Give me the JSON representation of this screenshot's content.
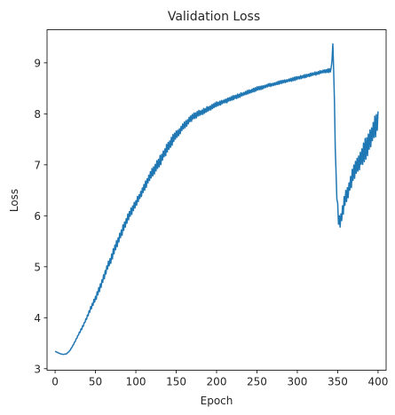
{
  "chart_data": {
    "type": "line",
    "title": "Validation Loss",
    "xlabel": "Epoch",
    "ylabel": "Loss",
    "xlim": [
      -10,
      410
    ],
    "ylim": [
      2.97,
      9.65
    ],
    "xticks": [
      0,
      50,
      100,
      150,
      200,
      250,
      300,
      350,
      400
    ],
    "yticks": [
      3,
      4,
      5,
      6,
      7,
      8,
      9
    ],
    "grid": false,
    "legend": false,
    "color": "#1f77b4",
    "series": [
      {
        "x": [
          0,
          4,
          7,
          10,
          14,
          18,
          22,
          26,
          30,
          34,
          38,
          42,
          46,
          50,
          55,
          60,
          65,
          70,
          75,
          80,
          85,
          90,
          95,
          100,
          105,
          110,
          115,
          120,
          125,
          130,
          135,
          140,
          145,
          150,
          155,
          160,
          165,
          170,
          175,
          180,
          185,
          190,
          195,
          200,
          205,
          210,
          215,
          220,
          225,
          230,
          235,
          240,
          245,
          250,
          255,
          260,
          265,
          270,
          275,
          280,
          285,
          290,
          295,
          300,
          305,
          310,
          315,
          320,
          325,
          330,
          335,
          340,
          342,
          343,
          344,
          345,
          346,
          347,
          348,
          350,
          352,
          354,
          356,
          358,
          360,
          362,
          364,
          366,
          368,
          370,
          372,
          374,
          376,
          378,
          380,
          382,
          384,
          386,
          388,
          390,
          392,
          394,
          396,
          398,
          400
        ],
        "y": [
          3.34,
          3.31,
          3.29,
          3.28,
          3.29,
          3.35,
          3.45,
          3.58,
          3.7,
          3.82,
          3.96,
          4.1,
          4.25,
          4.38,
          4.57,
          4.78,
          5.0,
          5.18,
          5.4,
          5.58,
          5.78,
          5.95,
          6.1,
          6.24,
          6.4,
          6.55,
          6.7,
          6.84,
          6.96,
          7.08,
          7.22,
          7.35,
          7.48,
          7.58,
          7.68,
          7.78,
          7.86,
          7.93,
          7.98,
          8.02,
          8.06,
          8.1,
          8.14,
          8.18,
          8.21,
          8.25,
          8.28,
          8.31,
          8.34,
          8.37,
          8.4,
          8.43,
          8.46,
          8.49,
          8.51,
          8.53,
          8.56,
          8.58,
          8.6,
          8.62,
          8.64,
          8.66,
          8.68,
          8.7,
          8.72,
          8.74,
          8.76,
          8.78,
          8.8,
          8.82,
          8.84,
          8.85,
          8.87,
          9.1,
          9.33,
          8.9,
          8.2,
          7.4,
          6.75,
          6.1,
          5.85,
          5.95,
          6.1,
          6.25,
          6.35,
          6.45,
          6.55,
          6.65,
          6.75,
          6.85,
          6.92,
          6.98,
          7.05,
          7.1,
          7.18,
          7.25,
          7.3,
          7.38,
          7.45,
          7.52,
          7.58,
          7.65,
          7.72,
          7.78,
          7.85
        ],
        "noise": [
          0,
          0,
          0,
          0,
          0,
          0.01,
          0.02,
          0.03,
          0.04,
          0.05,
          0.06,
          0.08,
          0.1,
          0.12,
          0.14,
          0.15,
          0.16,
          0.17,
          0.18,
          0.18,
          0.18,
          0.18,
          0.17,
          0.17,
          0.16,
          0.16,
          0.17,
          0.18,
          0.2,
          0.22,
          0.22,
          0.22,
          0.2,
          0.18,
          0.15,
          0.14,
          0.14,
          0.14,
          0.13,
          0.13,
          0.12,
          0.12,
          0.11,
          0.11,
          0.1,
          0.1,
          0.1,
          0.09,
          0.09,
          0.09,
          0.08,
          0.08,
          0.08,
          0.08,
          0.07,
          0.07,
          0.07,
          0.07,
          0.07,
          0.07,
          0.07,
          0.07,
          0.07,
          0.07,
          0.07,
          0.07,
          0.07,
          0.07,
          0.07,
          0.07,
          0.07,
          0.08,
          0.1,
          0.1,
          0.1,
          0.1,
          0.1,
          0.2,
          0.3,
          0.3,
          0.3,
          0.28,
          0.28,
          0.3,
          0.3,
          0.32,
          0.33,
          0.34,
          0.35,
          0.36,
          0.37,
          0.38,
          0.4,
          0.42,
          0.44,
          0.45,
          0.46,
          0.48,
          0.48,
          0.48,
          0.48,
          0.48,
          0.48,
          0.48,
          0.48
        ]
      }
    ]
  }
}
